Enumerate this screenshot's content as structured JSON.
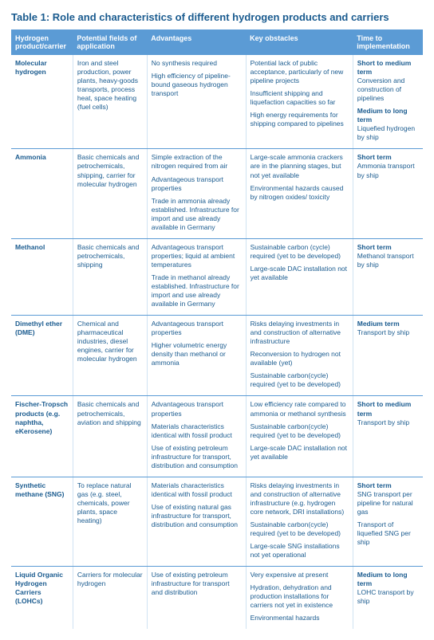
{
  "title": "Table 1: Role and characteristics of different hydrogen products and carriers",
  "colors": {
    "header_bg": "#5b9bd5",
    "header_text": "#ffffff",
    "body_text": "#1a5b8f",
    "row_border": "#5b9bd5",
    "col_border": "#d0e3f2",
    "page_bg": "#ffffff"
  },
  "columns": [
    "Hydrogen product/carrier",
    "Potential fields of application",
    "Advantages",
    "Key obstacles",
    "Time to implementation"
  ],
  "rows": [
    {
      "name": "Molecular hydrogen",
      "app": [
        "Iron and steel production, power plants, heavy-goods transports, process heat, space heating (fuel cells)"
      ],
      "adv": [
        "No synthesis required",
        "High efficiency of pipeline-bound gaseous hydrogen transport"
      ],
      "obs": [
        "Potential lack of public acceptance, particularly of new pipeline projects",
        "Insufficient shipping and liquefaction capacities so far",
        "High energy requirements for shipping compared to pipelines"
      ],
      "time": [
        {
          "b": "Short to medium term",
          "t": "Conversion and construction of pipelines"
        },
        {
          "b": "Medium to long term",
          "t": "Liquefied hydrogen by ship"
        }
      ]
    },
    {
      "name": "Ammonia",
      "app": [
        "Basic chemicals and petrochemicals, shipping, carrier for molecular hydrogen"
      ],
      "adv": [
        "Simple extraction of the nitrogen required from air",
        "Advantageous transport properties",
        "Trade in ammonia already established. Infrastructure for import and use already available in Germany"
      ],
      "obs": [
        "Large-scale ammonia crackers are in the planning stages, but not yet available",
        "Environmental hazards caused by nitrogen oxides/ toxicity"
      ],
      "time": [
        {
          "b": "Short term",
          "t": "Ammonia transport by ship"
        }
      ]
    },
    {
      "name": "Methanol",
      "app": [
        "Basic chemicals and petrochemicals, shipping"
      ],
      "adv": [
        "Advantageous transport properties; liquid at ambient temperatures",
        "Trade in methanol already established. Infrastructure for import and use already available in Germany"
      ],
      "obs": [
        "Sustainable carbon (cycle) required (yet to be developed)",
        "Large-scale DAC installation not yet available"
      ],
      "time": [
        {
          "b": "Short term",
          "t": "Methanol transport by ship"
        }
      ]
    },
    {
      "name": "Dimethyl ether (DME)",
      "app": [
        "Chemical and pharmaceutical industries, diesel engines, carrier for molecular hydrogen"
      ],
      "adv": [
        "Advantageous transport properties",
        "Higher volumetric energy density than methanol or ammonia"
      ],
      "obs": [
        "Risks delaying investments in and construction of alternative infrastructure",
        "Reconversion to hydrogen not available (yet)",
        "Sustainable carbon(cycle) required (yet to be developed)"
      ],
      "time": [
        {
          "b": "Medium term",
          "t": "Transport by ship"
        }
      ]
    },
    {
      "name": "Fischer-Tropsch products (e.g. naphtha, eKerosene)",
      "app": [
        "Basic chemicals and petrochemicals, aviation and shipping"
      ],
      "adv": [
        "Advantageous transport properties",
        "Materials characteristics identical with fossil product",
        "Use of existing petroleum infrastructure for transport, distribution and consumption"
      ],
      "obs": [
        "Low efficiency rate compared to ammonia or methanol synthesis",
        "Sustainable carbon(cycle) required (yet to be developed)",
        "Large-scale DAC installation not yet available"
      ],
      "time": [
        {
          "b": "Short to medium term",
          "t": "Transport by ship"
        }
      ]
    },
    {
      "name": "Synthetic methane (SNG)",
      "app": [
        "To replace natural gas (e.g. steel, chemicals, power plants, space heating)"
      ],
      "adv": [
        "Materials characteristics identical with fossil product",
        "Use of existing natural gas infrastructure for transport, distribution and consumption"
      ],
      "obs": [
        "Risks delaying investments in and construction of alternative infrastructure (e.g. hydrogen core network, DRI installations)",
        "Sustainable carbon(cycle) required (yet to be developed)",
        "Large-scale SNG installations not yet operational"
      ],
      "time": [
        {
          "b": "Short term",
          "t": "SNG transport per pipeline for natural gas"
        },
        {
          "b": "",
          "t": "Transport of liquefied SNG per ship"
        }
      ]
    },
    {
      "name": "Liquid Organic Hydrogen Carriers (LOHCs)",
      "app": [
        "Carriers for molecular hydrogen"
      ],
      "adv": [
        "Use of existing petroleum infrastructure for transport and distribution"
      ],
      "obs": [
        "Very expensive at present",
        "Hydration, dehydration and production installations for carriers not yet in existence",
        "Environmental hazards"
      ],
      "time": [
        {
          "b": "Medium to long term",
          "t": "LOHC transport by ship"
        }
      ]
    }
  ]
}
